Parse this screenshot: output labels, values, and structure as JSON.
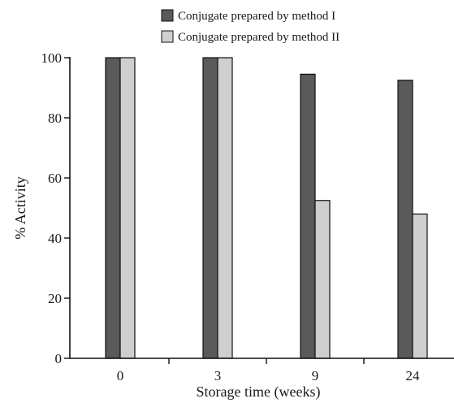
{
  "chart_data": {
    "type": "bar",
    "xlabel": "Storage time (weeks)",
    "ylabel": "% Activity",
    "categories": [
      "0",
      "3",
      "9",
      "24"
    ],
    "ylim": [
      0,
      100
    ],
    "yticks": [
      0,
      20,
      40,
      60,
      80,
      100
    ],
    "grid": false,
    "legend_position": "top",
    "series": [
      {
        "name": "Conjugate prepared by method I",
        "color": "#5a5a5a",
        "values": [
          100,
          100,
          94.5,
          92.5
        ]
      },
      {
        "name": "Conjugate prepared by method II",
        "color": "#cfcfcf",
        "values": [
          100,
          100,
          52.5,
          48
        ]
      }
    ]
  }
}
